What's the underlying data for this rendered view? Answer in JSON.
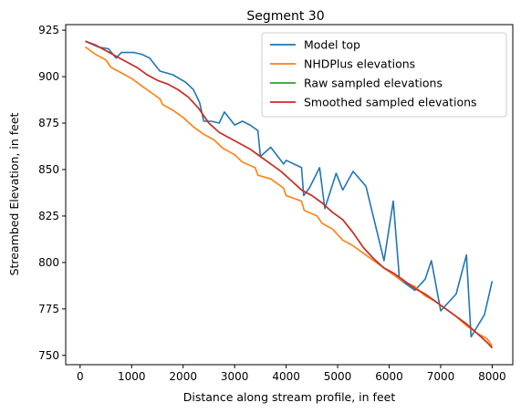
{
  "chart_data": {
    "type": "line",
    "title": "Segment 30",
    "xlabel": "Distance along stream profile, in feet",
    "ylabel": "Streambed Elevation, in feet",
    "xlim": [
      -280,
      8400
    ],
    "ylim": [
      745,
      928
    ],
    "xticks": [
      0,
      1000,
      2000,
      3000,
      4000,
      5000,
      6000,
      7000,
      8000
    ],
    "yticks": [
      750,
      775,
      800,
      825,
      850,
      875,
      900,
      925
    ],
    "legend_position": "top-right",
    "grid": false,
    "series": [
      {
        "name": "Model top",
        "color": "#1f77b4",
        "x": [
          100,
          350,
          550,
          700,
          800,
          1050,
          1200,
          1350,
          1550,
          1800,
          2050,
          2200,
          2320,
          2400,
          2550,
          2700,
          2800,
          3000,
          3150,
          3300,
          3450,
          3500,
          3700,
          3950,
          4000,
          4300,
          4340,
          4450,
          4650,
          4750,
          4970,
          5100,
          5300,
          5550,
          5900,
          6080,
          6200,
          6500,
          6700,
          6820,
          7000,
          7300,
          7500,
          7590,
          7850,
          8000
        ],
        "y": [
          919,
          916,
          915,
          910,
          913,
          913,
          912,
          910,
          903,
          901,
          897,
          893,
          886,
          876,
          876,
          875,
          881,
          874,
          876,
          874,
          871,
          857,
          862,
          853,
          855,
          851,
          836,
          840,
          851,
          829,
          848,
          839,
          849,
          841,
          801,
          833,
          791,
          785,
          791,
          801,
          774,
          783,
          804,
          760,
          772,
          790
        ]
      },
      {
        "name": "NHDPlus elevations",
        "color": "#ff7f0e",
        "x": [
          100,
          300,
          500,
          600,
          800,
          1000,
          1200,
          1400,
          1550,
          1600,
          1800,
          2000,
          2200,
          2400,
          2600,
          2750,
          2800,
          3000,
          3150,
          3400,
          3450,
          3700,
          3950,
          4000,
          4300,
          4350,
          4600,
          4700,
          4900,
          5100,
          5300,
          5600,
          5900,
          6200,
          6500,
          6700,
          6900,
          7100,
          7300,
          7500,
          7700,
          7900,
          8000
        ],
        "y": [
          916,
          912,
          909,
          905,
          902,
          899,
          895,
          891,
          888,
          885,
          882,
          878,
          873,
          869,
          866,
          862,
          861,
          858,
          854,
          851,
          847,
          845,
          840,
          836,
          833,
          828,
          825,
          821,
          818,
          812,
          809,
          803,
          797,
          791,
          787,
          782,
          779,
          775,
          771,
          766,
          762,
          759,
          755
        ]
      },
      {
        "name": "Raw sampled elevations",
        "color": "#2ca02c",
        "x": [
          100,
          300,
          500,
          700,
          900,
          1100,
          1300,
          1500,
          1700,
          1900,
          2100,
          2300,
          2500,
          2700,
          2900,
          3100,
          3300,
          3500,
          3700,
          3900,
          4100,
          4300,
          4500,
          4700,
          4900,
          5100,
          5300,
          5500,
          5700,
          5900,
          6100,
          6300,
          6500,
          6700,
          6900,
          7100,
          7300,
          7500,
          7700,
          7900,
          8000
        ],
        "y": [
          919,
          917,
          914,
          911,
          908,
          905,
          901,
          898,
          896,
          893,
          889,
          883,
          875,
          870,
          867,
          864,
          861,
          857,
          853,
          849,
          844,
          839,
          836,
          832,
          827,
          823,
          816,
          808,
          802,
          797,
          794,
          790,
          786,
          783,
          779,
          775,
          771,
          767,
          762,
          757,
          754
        ]
      },
      {
        "name": "Smoothed sampled elevations",
        "color": "#d62728",
        "x": [
          100,
          300,
          500,
          700,
          900,
          1100,
          1300,
          1500,
          1700,
          1900,
          2100,
          2300,
          2500,
          2700,
          2900,
          3100,
          3300,
          3500,
          3700,
          3900,
          4100,
          4300,
          4500,
          4700,
          4900,
          5100,
          5300,
          5500,
          5700,
          5900,
          6100,
          6300,
          6500,
          6700,
          6900,
          7100,
          7300,
          7500,
          7700,
          7900,
          8000
        ],
        "y": [
          919,
          917,
          914,
          911,
          908,
          905,
          901,
          898,
          896,
          893,
          889,
          883,
          875,
          870,
          867,
          864,
          861,
          857,
          853,
          849,
          844,
          839,
          836,
          832,
          827,
          823,
          816,
          808,
          802,
          797,
          794,
          790,
          786,
          783,
          779,
          775,
          771,
          767,
          762,
          757,
          754
        ]
      }
    ]
  }
}
